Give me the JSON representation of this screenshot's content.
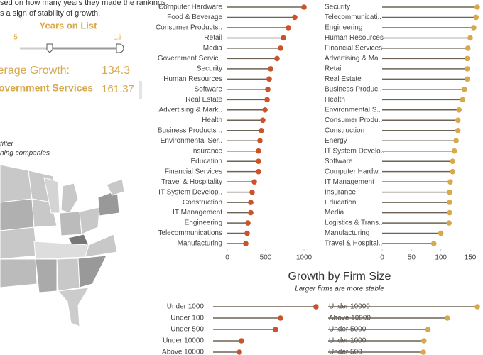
{
  "intro": [
    "sed on how many years they made the rankings.",
    "s a sign of stability of growth."
  ],
  "slider": {
    "label": "Years on List",
    "min": 5,
    "max": 13
  },
  "summary": {
    "label": "Average Growth:",
    "value": 134.3,
    "highlight_name": "overnment Services",
    "highlight_value": 161.37
  },
  "filter_note": [
    "filter",
    "ning companies"
  ],
  "chart_data": [
    {
      "type": "lollipop",
      "color": "#c9542b",
      "categories": [
        "Computer Hardware",
        "Food & Beverage",
        "Consumer Products..",
        "Retail",
        "Media",
        "Government Servic..",
        "Security",
        "Human Resources",
        "Software",
        "Real Estate",
        "Advertising & Mark..",
        "Health",
        "Business Products ..",
        "Environmental Ser..",
        "Insurance",
        "Education",
        "Financial Services",
        "Travel & Hospitality",
        "IT System Develop..",
        "Construction",
        "IT Management",
        "Engineering",
        "Telecommunications",
        "Manufacturing"
      ],
      "values": [
        1000,
        880,
        796,
        731,
        694,
        648,
        565,
        546,
        528,
        519,
        491,
        463,
        444,
        426,
        407,
        407,
        407,
        352,
        324,
        306,
        306,
        269,
        259,
        241
      ],
      "xlim": [
        0,
        1000
      ],
      "xticks": [
        0,
        500,
        1000
      ]
    },
    {
      "type": "lollipop",
      "color": "#d8a84b",
      "categories": [
        "Security",
        "Telecommunicati..",
        "Engineering",
        "Human Resources",
        "Financial Services",
        "Advertising & Ma..",
        "Retail",
        "Real Estate",
        "Business Produc..",
        "Health",
        "Environmental S..",
        "Consumer Produ..",
        "Construction",
        "Energy",
        "IT System Develo..",
        "Software",
        "Computer Hardw..",
        "IT Management",
        "Insurance",
        "Education",
        "Media",
        "Logistics & Trans..",
        "Manufacturing",
        "Travel & Hospital.."
      ],
      "values": [
        162,
        160,
        156,
        150,
        146,
        145,
        145,
        145,
        140,
        137,
        131,
        129,
        129,
        126,
        123,
        120,
        120,
        116,
        115,
        115,
        115,
        114,
        100,
        88
      ],
      "xlim": [
        0,
        150
      ],
      "xticks": [
        0,
        50,
        100,
        150
      ]
    },
    {
      "type": "lollipop",
      "color": "#c9542b",
      "title": "Growth by Firm Size",
      "subtitle": "Larger firms are more stable",
      "categories": [
        "Under 1000",
        "Under 100",
        "Under 500",
        "Under 10000",
        "Above 10000"
      ],
      "values": [
        1343,
        880,
        815,
        370,
        343
      ],
      "xlim": [
        0,
        1400
      ]
    },
    {
      "type": "lollipop",
      "color": "#d8a84b",
      "categories": [
        "Under 10000",
        "Above 10000",
        "Under 5000",
        "Under 1000",
        "Under 500"
      ],
      "values": [
        254,
        203,
        170,
        163,
        162
      ],
      "xlim": [
        0,
        260
      ]
    }
  ]
}
